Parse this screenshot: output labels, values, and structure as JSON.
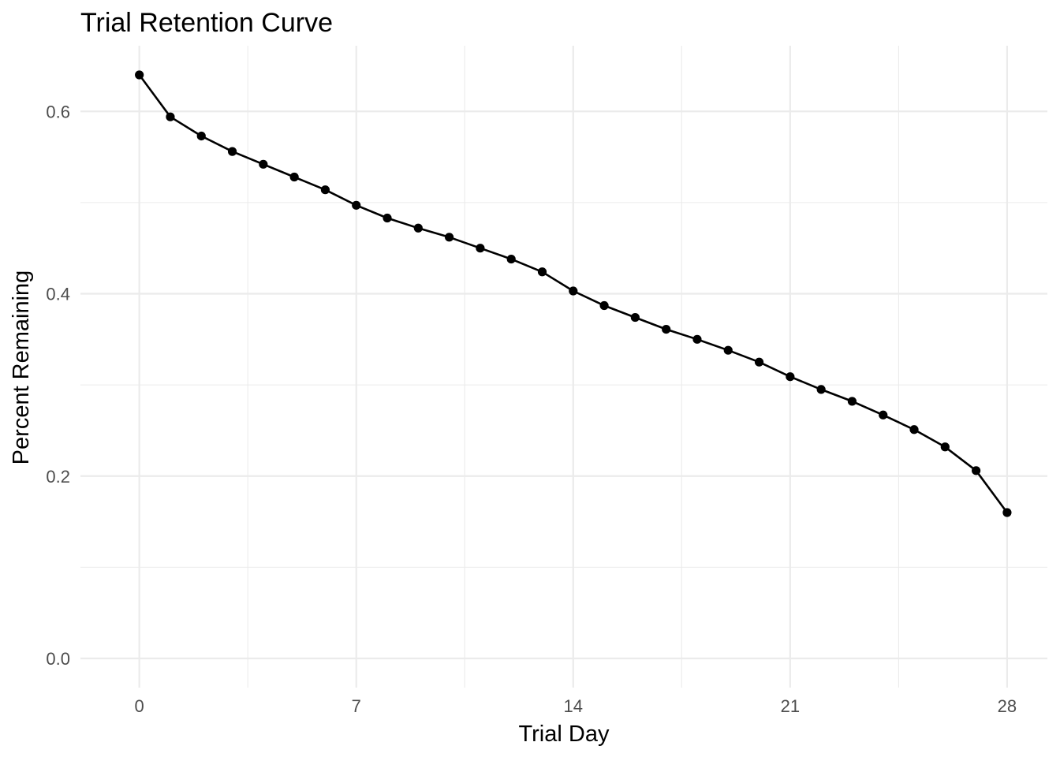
{
  "chart_data": {
    "type": "line",
    "title": "Trial Retention Curve",
    "xlabel": "Trial Day",
    "ylabel": "Percent Remaining",
    "x": [
      0,
      1,
      2,
      3,
      4,
      5,
      6,
      7,
      8,
      9,
      10,
      11,
      12,
      13,
      14,
      15,
      16,
      17,
      18,
      19,
      20,
      21,
      22,
      23,
      24,
      25,
      26,
      27,
      28
    ],
    "series": [
      {
        "values": [
          0.64,
          0.594,
          0.573,
          0.556,
          0.542,
          0.528,
          0.514,
          0.497,
          0.483,
          0.472,
          0.462,
          0.45,
          0.438,
          0.424,
          0.403,
          0.387,
          0.374,
          0.361,
          0.35,
          0.338,
          0.325,
          0.309,
          0.295,
          0.282,
          0.267,
          0.251,
          0.232,
          0.206,
          0.16
        ],
        "color": "#000000"
      }
    ],
    "xlim": [
      -1.9,
      29.3
    ],
    "ylim": [
      -0.032,
      0.672
    ],
    "x_ticks": [
      0,
      7,
      14,
      21,
      28
    ],
    "x_tick_labels": [
      "0",
      "7",
      "14",
      "21",
      "28"
    ],
    "x_minor_ticks": [
      3.5,
      10.5,
      17.5,
      24.5
    ],
    "y_ticks": [
      0.0,
      0.2,
      0.4,
      0.6
    ],
    "y_tick_labels": [
      "0.0",
      "0.2",
      "0.4",
      "0.6"
    ],
    "y_minor_ticks": [
      0.1,
      0.3,
      0.5
    ],
    "grid": true,
    "markers": true,
    "legend": "none",
    "colors": {
      "line": "#000000",
      "grid": "#ebebeb",
      "tick_text": "#4d4d4d",
      "background": "#ffffff"
    }
  }
}
